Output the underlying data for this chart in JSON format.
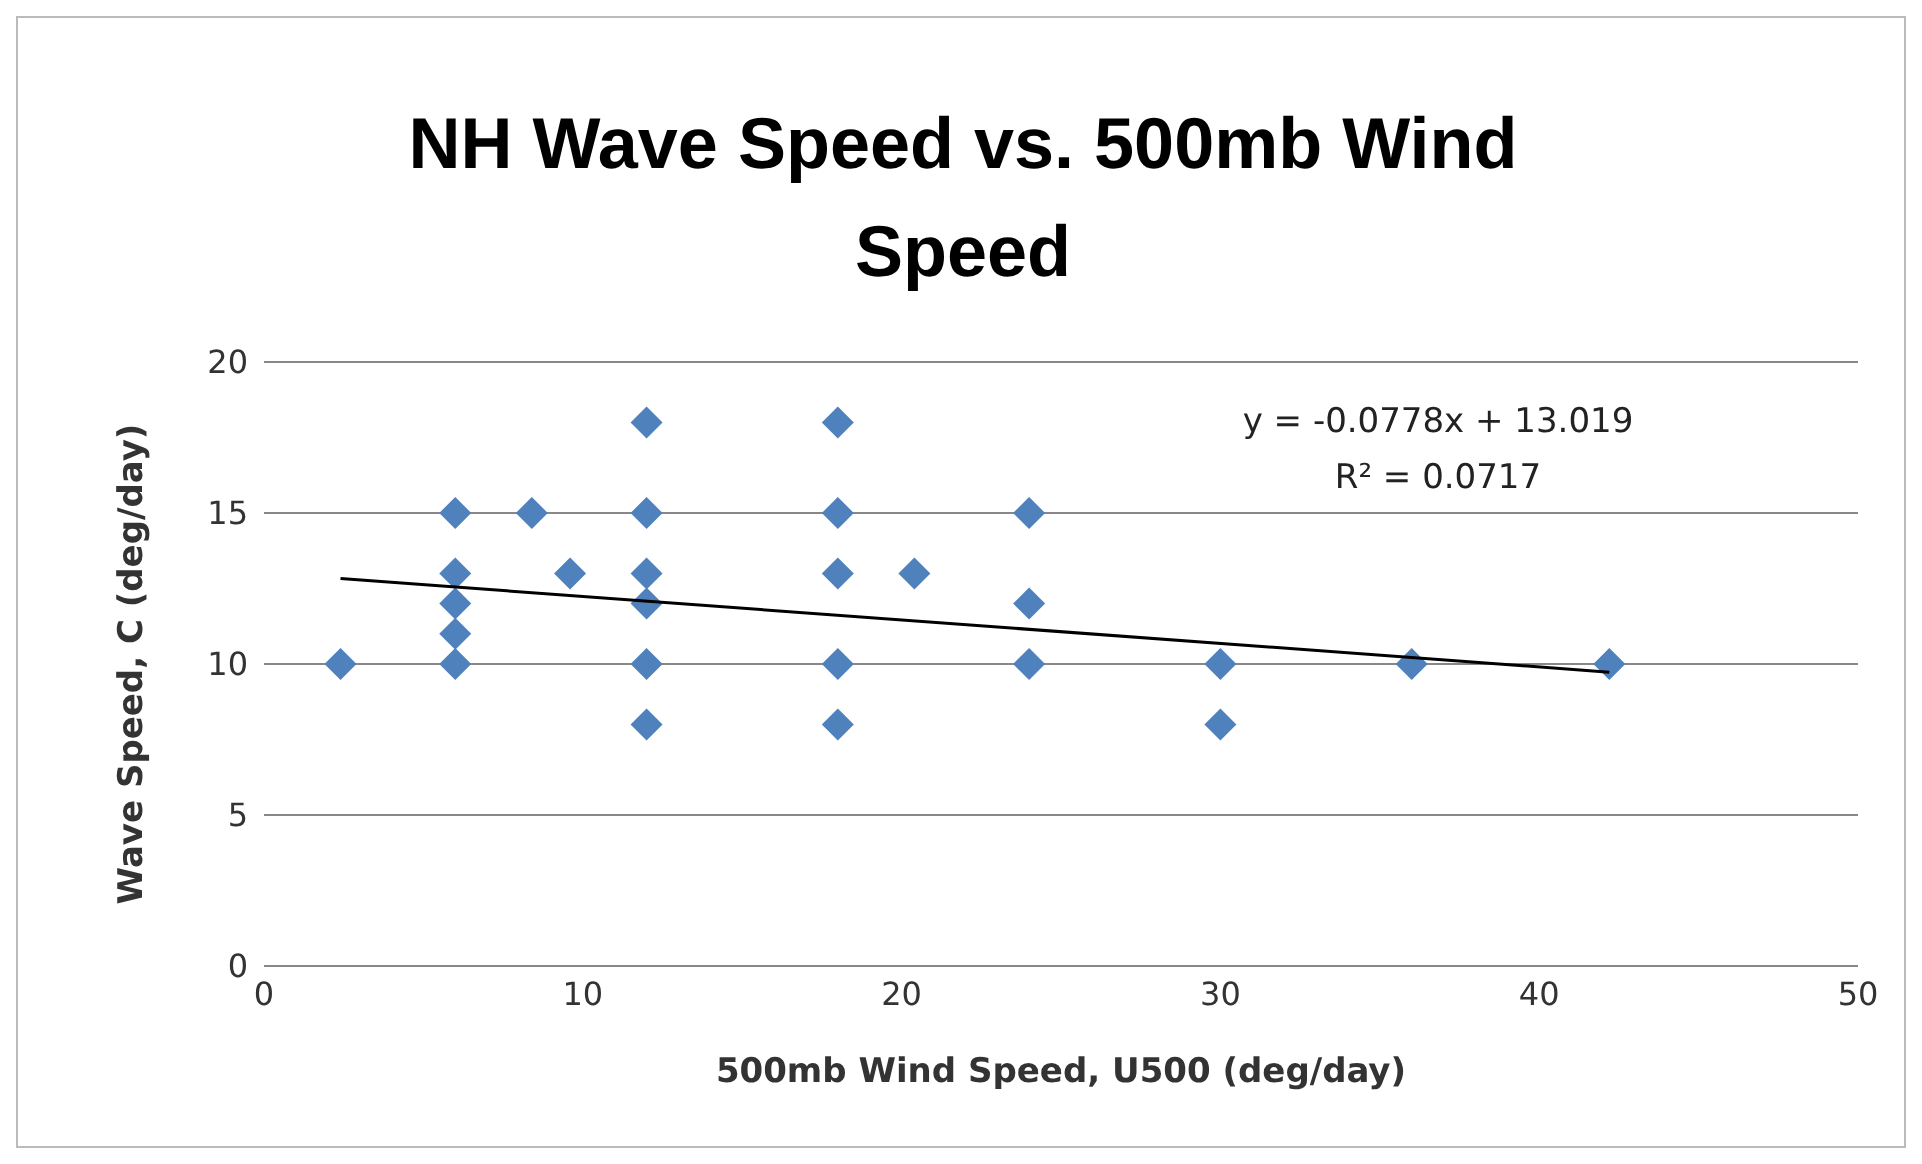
{
  "chart_data": {
    "type": "scatter",
    "title": "NH Wave Speed vs. 500mb Wind Speed",
    "xlabel": "500mb Wind Speed, U500 (deg/day)",
    "ylabel": "Wave Speed, C (deg/day)",
    "xlim": [
      0,
      50
    ],
    "xticks": [
      0,
      10,
      20,
      30,
      40,
      50
    ],
    "ylim": [
      0,
      20
    ],
    "yticks": [
      0,
      5,
      10,
      15,
      20
    ],
    "grid": "y",
    "legend": false,
    "marker": "diamond",
    "annotations": [
      "y = -0.0778x + 13.019",
      "R² = 0.0717"
    ],
    "series": [
      {
        "type": "scatter",
        "color": "#4f81bd",
        "x": [
          2.4,
          6,
          6,
          6,
          6,
          6,
          8.4,
          9.6,
          12,
          12,
          12,
          12,
          12,
          12,
          18,
          18,
          18,
          18,
          18,
          20.4,
          24,
          24,
          24,
          30,
          30,
          36,
          42.2
        ],
        "values": [
          10,
          15,
          13,
          12,
          11,
          10,
          15,
          13,
          18,
          15,
          13,
          12,
          10,
          8,
          18,
          15,
          13,
          10,
          8,
          13,
          15,
          12,
          10,
          10,
          8,
          10,
          10
        ]
      },
      {
        "type": "line",
        "color": "#000000",
        "line_style": "solid",
        "marker": "none",
        "x": [
          2.4,
          42.2
        ],
        "values": [
          12.83,
          9.73
        ]
      }
    ]
  }
}
